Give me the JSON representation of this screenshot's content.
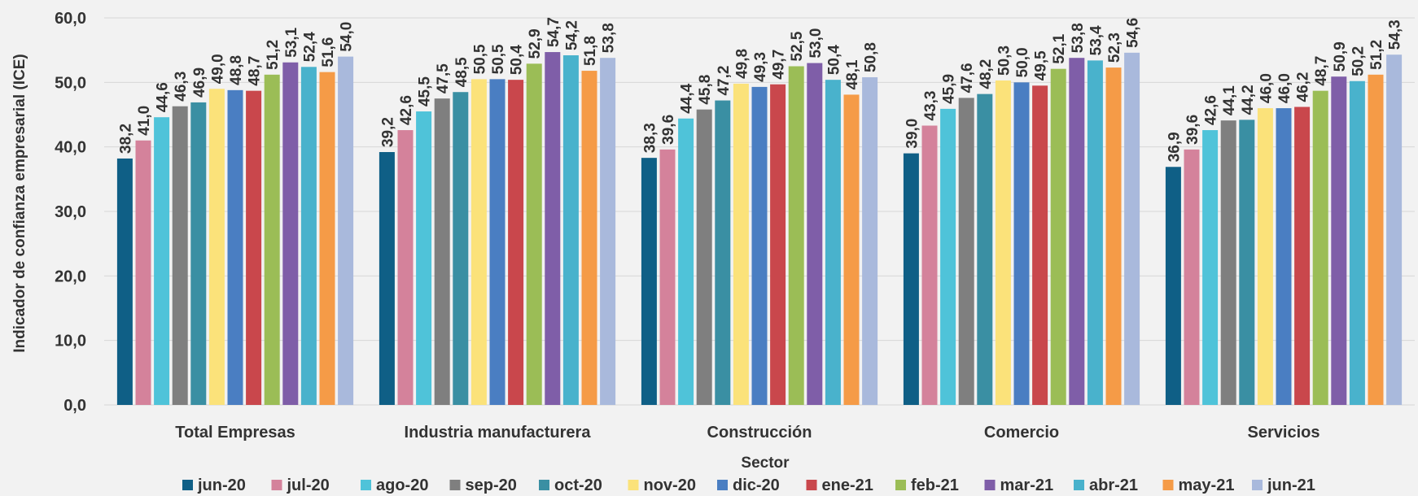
{
  "chart_data": {
    "type": "bar",
    "xlabel": "Sector",
    "ylabel": "Indicador de confianza empresarial (ICE)",
    "ylim": [
      0,
      60
    ],
    "yticks": [
      "0,0",
      "10,0",
      "20,0",
      "30,0",
      "40,0",
      "50,0",
      "60,0"
    ],
    "grid": true,
    "legend_position": "bottom",
    "categories": [
      "Total Empresas",
      "Industria manufacturera",
      "Construcción",
      "Comercio",
      "Servicios"
    ],
    "series": [
      {
        "name": "jun-20",
        "color": "#0f5f86",
        "values": [
          38.2,
          39.2,
          38.3,
          39.0,
          36.9
        ],
        "labels": [
          "38,2",
          "39,2",
          "38,3",
          "39,0",
          "36,9"
        ]
      },
      {
        "name": "jul-20",
        "color": "#d4829b",
        "values": [
          41.0,
          42.6,
          39.6,
          43.3,
          39.6
        ],
        "labels": [
          "41,0",
          "42,6",
          "39,6",
          "43,3",
          "39,6"
        ]
      },
      {
        "name": "ago-20",
        "color": "#4fc3d9",
        "values": [
          44.6,
          45.5,
          44.4,
          45.9,
          42.6
        ],
        "labels": [
          "44,6",
          "45,5",
          "44,4",
          "45,9",
          "42,6"
        ]
      },
      {
        "name": "sep-20",
        "color": "#7f7f7f",
        "values": [
          46.3,
          47.5,
          45.8,
          47.6,
          44.1
        ],
        "labels": [
          "46,3",
          "47,5",
          "45,8",
          "47,6",
          "44,1"
        ]
      },
      {
        "name": "oct-20",
        "color": "#3a8fa3",
        "values": [
          46.9,
          48.5,
          47.2,
          48.2,
          44.2
        ],
        "labels": [
          "46,9",
          "48,5",
          "47,2",
          "48,2",
          "44,2"
        ]
      },
      {
        "name": "nov-20",
        "color": "#fbe27a",
        "values": [
          49.0,
          50.5,
          49.8,
          50.3,
          46.0
        ],
        "labels": [
          "49,0",
          "50,5",
          "49,8",
          "50,3",
          "46,0"
        ]
      },
      {
        "name": "dic-20",
        "color": "#4a7ec2",
        "values": [
          48.8,
          50.5,
          49.3,
          50.0,
          46.0
        ],
        "labels": [
          "48,8",
          "50,5",
          "49,3",
          "50,0",
          "46,0"
        ]
      },
      {
        "name": "ene-21",
        "color": "#c9474c",
        "values": [
          48.7,
          50.4,
          49.7,
          49.5,
          46.2
        ],
        "labels": [
          "48,7",
          "50,4",
          "49,7",
          "49,5",
          "46,2"
        ]
      },
      {
        "name": "feb-21",
        "color": "#9bbd56",
        "values": [
          51.2,
          52.9,
          52.5,
          52.1,
          48.7
        ],
        "labels": [
          "51,2",
          "52,9",
          "52,5",
          "52,1",
          "48,7"
        ]
      },
      {
        "name": "mar-21",
        "color": "#7f5ea8",
        "values": [
          53.1,
          54.7,
          53.0,
          53.8,
          50.9
        ],
        "labels": [
          "53,1",
          "54,7",
          "53,0",
          "53,8",
          "50,9"
        ]
      },
      {
        "name": "abr-21",
        "color": "#49b2cc",
        "values": [
          52.4,
          54.2,
          50.4,
          53.4,
          50.2
        ],
        "labels": [
          "52,4",
          "54,2",
          "50,4",
          "53,4",
          "50,2"
        ]
      },
      {
        "name": "may-21",
        "color": "#f59b47",
        "values": [
          51.6,
          51.8,
          48.1,
          52.3,
          51.2
        ],
        "labels": [
          "51,6",
          "51,8",
          "48,1",
          "52,3",
          "51,2"
        ]
      },
      {
        "name": "jun-21",
        "color": "#a9b9dc",
        "values": [
          54.0,
          53.8,
          50.8,
          54.6,
          54.3
        ],
        "labels": [
          "54,0",
          "53,8",
          "50,8",
          "54,6",
          "54,3"
        ]
      }
    ]
  }
}
